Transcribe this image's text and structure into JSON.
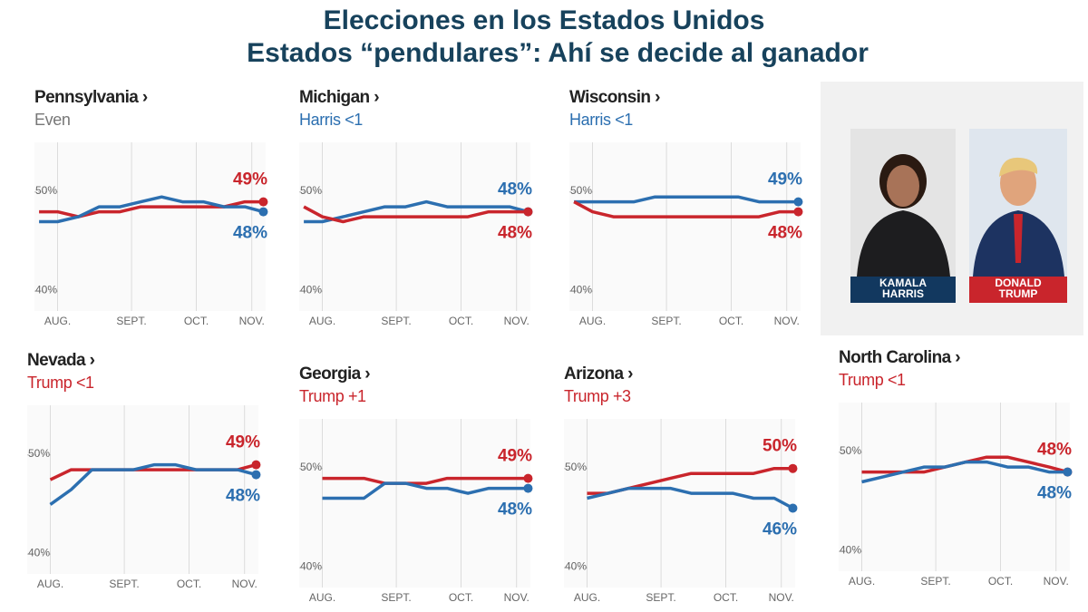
{
  "title": "Elecciones en los Estados Unidos",
  "subtitle": "Estados “pendulares”: Ahí se decide al ganador",
  "candidates": [
    {
      "label_lines": [
        "KAMALA",
        "HARRIS"
      ],
      "color": "#12385f"
    },
    {
      "label_lines": [
        "DONALD",
        "TRUMP"
      ],
      "color": "#c9252c"
    }
  ],
  "chart_data": [
    {
      "type": "line",
      "title": "Pennsylvania ›",
      "subtitle": "Even",
      "subtitle_color": "#777777",
      "x": [
        2,
        10,
        19,
        28,
        37,
        46,
        55,
        64,
        73,
        82,
        91,
        99
      ],
      "xlim": [
        0,
        100
      ],
      "ylim": [
        38,
        55
      ],
      "xticks": [
        {
          "value": 10,
          "label": "AUG."
        },
        {
          "value": 42,
          "label": "SEPT."
        },
        {
          "value": 70,
          "label": "OCT."
        },
        {
          "value": 94,
          "label": "NOV."
        }
      ],
      "yticks": [
        {
          "value": 40,
          "label": "40%"
        },
        {
          "value": 50,
          "label": "50%"
        }
      ],
      "series": [
        {
          "color": "#c9252c",
          "values": [
            48,
            48,
            47.5,
            48,
            48,
            48.5,
            48.5,
            48.5,
            48.5,
            48.5,
            49,
            49
          ],
          "value_labels": [
            null,
            null,
            null,
            null,
            null,
            null,
            null,
            null,
            null,
            null,
            null,
            "49%"
          ]
        },
        {
          "color": "#2c6fb0",
          "values": [
            47,
            47,
            47.5,
            48.5,
            48.5,
            49,
            49.5,
            49,
            49,
            48.5,
            48.5,
            48
          ],
          "value_labels": [
            null,
            null,
            null,
            null,
            null,
            null,
            null,
            null,
            null,
            null,
            null,
            "48%"
          ]
        }
      ]
    },
    {
      "type": "line",
      "title": "Michigan ›",
      "subtitle": "Harris <1",
      "subtitle_color": "#2c6fb0",
      "x": [
        2,
        10,
        19,
        28,
        37,
        46,
        55,
        64,
        73,
        82,
        91,
        99
      ],
      "xlim": [
        0,
        100
      ],
      "ylim": [
        38,
        55
      ],
      "xticks": [
        {
          "value": 10,
          "label": "AUG."
        },
        {
          "value": 42,
          "label": "SEPT."
        },
        {
          "value": 70,
          "label": "OCT."
        },
        {
          "value": 94,
          "label": "NOV."
        }
      ],
      "yticks": [
        {
          "value": 40,
          "label": "40%"
        },
        {
          "value": 50,
          "label": "50%"
        }
      ],
      "series": [
        {
          "color": "#2c6fb0",
          "values": [
            47,
            47,
            47.5,
            48,
            48.5,
            48.5,
            49,
            48.5,
            48.5,
            48.5,
            48.5,
            48
          ],
          "value_labels": [
            null,
            null,
            null,
            null,
            null,
            null,
            null,
            null,
            null,
            null,
            null,
            "48%"
          ]
        },
        {
          "color": "#c9252c",
          "values": [
            48.5,
            47.5,
            47,
            47.5,
            47.5,
            47.5,
            47.5,
            47.5,
            47.5,
            48,
            48,
            48
          ],
          "value_labels": [
            null,
            null,
            null,
            null,
            null,
            null,
            null,
            null,
            null,
            null,
            null,
            "48%"
          ]
        }
      ]
    },
    {
      "type": "line",
      "title": "Wisconsin ›",
      "subtitle": "Harris <1",
      "subtitle_color": "#2c6fb0",
      "x": [
        2,
        10,
        19,
        28,
        37,
        46,
        55,
        64,
        73,
        82,
        91,
        99
      ],
      "xlim": [
        0,
        100
      ],
      "ylim": [
        38,
        55
      ],
      "xticks": [
        {
          "value": 10,
          "label": "AUG."
        },
        {
          "value": 42,
          "label": "SEPT."
        },
        {
          "value": 70,
          "label": "OCT."
        },
        {
          "value": 94,
          "label": "NOV."
        }
      ],
      "yticks": [
        {
          "value": 40,
          "label": "40%"
        },
        {
          "value": 50,
          "label": "50%"
        }
      ],
      "series": [
        {
          "color": "#2c6fb0",
          "values": [
            49,
            49,
            49,
            49,
            49.5,
            49.5,
            49.5,
            49.5,
            49.5,
            49,
            49,
            49
          ],
          "value_labels": [
            null,
            null,
            null,
            null,
            null,
            null,
            null,
            null,
            null,
            null,
            null,
            "49%"
          ]
        },
        {
          "color": "#c9252c",
          "values": [
            49,
            48,
            47.5,
            47.5,
            47.5,
            47.5,
            47.5,
            47.5,
            47.5,
            47.5,
            48,
            48
          ],
          "value_labels": [
            null,
            null,
            null,
            null,
            null,
            null,
            null,
            null,
            null,
            null,
            null,
            "48%"
          ]
        }
      ]
    },
    {
      "type": "line",
      "title": "Nevada ›",
      "subtitle": "Trump <1",
      "subtitle_color": "#c9252c",
      "x": [
        2,
        10,
        19,
        28,
        37,
        46,
        55,
        64,
        73,
        82,
        91,
        99
      ],
      "xlim": [
        0,
        100
      ],
      "ylim": [
        38,
        55
      ],
      "xticks": [
        {
          "value": 10,
          "label": "AUG."
        },
        {
          "value": 42,
          "label": "SEPT."
        },
        {
          "value": 70,
          "label": "OCT."
        },
        {
          "value": 94,
          "label": "NOV."
        }
      ],
      "yticks": [
        {
          "value": 40,
          "label": "40%"
        },
        {
          "value": 50,
          "label": "50%"
        }
      ],
      "series": [
        {
          "color": "#c9252c",
          "values": [
            null,
            47.5,
            48.5,
            48.5,
            48.5,
            48.5,
            48.5,
            48.5,
            48.5,
            48.5,
            48.5,
            49
          ],
          "value_labels": [
            null,
            null,
            null,
            null,
            null,
            null,
            null,
            null,
            null,
            null,
            null,
            "49%"
          ]
        },
        {
          "color": "#2c6fb0",
          "values": [
            null,
            45,
            46.5,
            48.5,
            48.5,
            48.5,
            49,
            49,
            48.5,
            48.5,
            48.5,
            48
          ],
          "value_labels": [
            null,
            null,
            null,
            null,
            null,
            null,
            null,
            null,
            null,
            null,
            null,
            "48%"
          ]
        }
      ]
    },
    {
      "type": "line",
      "title": "Georgia ›",
      "subtitle": "Trump +1",
      "subtitle_color": "#c9252c",
      "x": [
        2,
        10,
        19,
        28,
        37,
        46,
        55,
        64,
        73,
        82,
        91,
        99
      ],
      "xlim": [
        0,
        100
      ],
      "ylim": [
        38,
        55
      ],
      "xticks": [
        {
          "value": 10,
          "label": "AUG."
        },
        {
          "value": 42,
          "label": "SEPT."
        },
        {
          "value": 70,
          "label": "OCT."
        },
        {
          "value": 94,
          "label": "NOV."
        }
      ],
      "yticks": [
        {
          "value": 40,
          "label": "40%"
        },
        {
          "value": 50,
          "label": "50%"
        }
      ],
      "series": [
        {
          "color": "#c9252c",
          "values": [
            null,
            49,
            49,
            49,
            48.5,
            48.5,
            48.5,
            49,
            49,
            49,
            49,
            49
          ],
          "value_labels": [
            null,
            null,
            null,
            null,
            null,
            null,
            null,
            null,
            null,
            null,
            null,
            "49%"
          ]
        },
        {
          "color": "#2c6fb0",
          "values": [
            null,
            47,
            47,
            47,
            48.5,
            48.5,
            48,
            48,
            47.5,
            48,
            48,
            48
          ],
          "value_labels": [
            null,
            null,
            null,
            null,
            null,
            null,
            null,
            null,
            null,
            null,
            null,
            "48%"
          ]
        }
      ]
    },
    {
      "type": "line",
      "title": "Arizona ›",
      "subtitle": "Trump +3",
      "subtitle_color": "#c9252c",
      "x": [
        2,
        10,
        19,
        28,
        37,
        46,
        55,
        64,
        73,
        82,
        91,
        99
      ],
      "xlim": [
        0,
        100
      ],
      "ylim": [
        38,
        55
      ],
      "xticks": [
        {
          "value": 10,
          "label": "AUG."
        },
        {
          "value": 42,
          "label": "SEPT."
        },
        {
          "value": 70,
          "label": "OCT."
        },
        {
          "value": 94,
          "label": "NOV."
        }
      ],
      "yticks": [
        {
          "value": 40,
          "label": "40%"
        },
        {
          "value": 50,
          "label": "50%"
        }
      ],
      "series": [
        {
          "color": "#c9252c",
          "values": [
            null,
            47.5,
            47.5,
            48,
            48.5,
            49,
            49.5,
            49.5,
            49.5,
            49.5,
            50,
            50
          ],
          "value_labels": [
            null,
            null,
            null,
            null,
            null,
            null,
            null,
            null,
            null,
            null,
            null,
            "50%"
          ]
        },
        {
          "color": "#2c6fb0",
          "values": [
            null,
            47,
            47.5,
            48,
            48,
            48,
            47.5,
            47.5,
            47.5,
            47,
            47,
            46
          ],
          "value_labels": [
            null,
            null,
            null,
            null,
            null,
            null,
            null,
            null,
            null,
            null,
            null,
            "46%"
          ]
        }
      ]
    },
    {
      "type": "line",
      "title": "North Carolina ›",
      "subtitle": "Trump <1",
      "subtitle_color": "#c9252c",
      "x": [
        2,
        10,
        19,
        28,
        37,
        46,
        55,
        64,
        73,
        82,
        91,
        99
      ],
      "xlim": [
        0,
        100
      ],
      "ylim": [
        38,
        55
      ],
      "xticks": [
        {
          "value": 10,
          "label": "AUG."
        },
        {
          "value": 42,
          "label": "SEPT."
        },
        {
          "value": 70,
          "label": "OCT."
        },
        {
          "value": 94,
          "label": "NOV."
        }
      ],
      "yticks": [
        {
          "value": 40,
          "label": "40%"
        },
        {
          "value": 50,
          "label": "50%"
        }
      ],
      "series": [
        {
          "color": "#c9252c",
          "values": [
            null,
            48,
            48,
            48,
            48,
            48.5,
            49,
            49.5,
            49.5,
            49,
            48.5,
            48
          ],
          "value_labels": [
            null,
            null,
            null,
            null,
            null,
            null,
            null,
            null,
            null,
            null,
            null,
            "48%"
          ]
        },
        {
          "color": "#2c6fb0",
          "values": [
            null,
            47,
            47.5,
            48,
            48.5,
            48.5,
            49,
            49,
            48.5,
            48.5,
            48,
            48
          ],
          "value_labels": [
            null,
            null,
            null,
            null,
            null,
            null,
            null,
            null,
            null,
            null,
            null,
            "48%"
          ]
        }
      ]
    }
  ]
}
